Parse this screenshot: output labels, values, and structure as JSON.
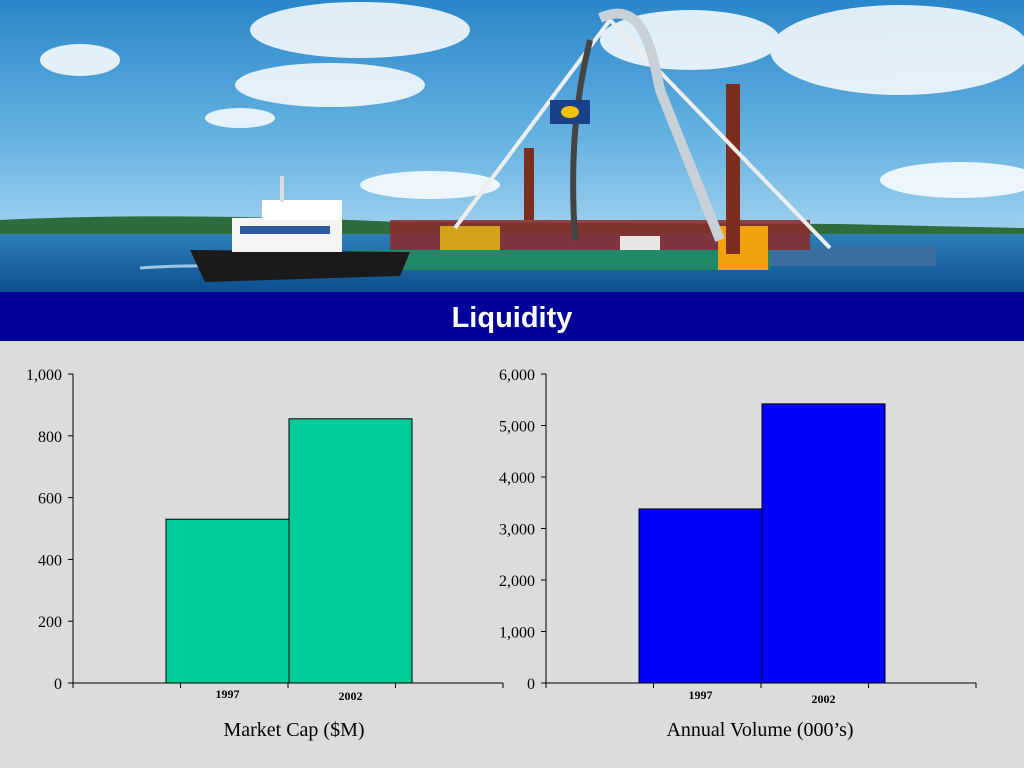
{
  "slide": {
    "title": "Liquidity",
    "title_bar_color": "#000099",
    "background_color": "#dcdcdc",
    "hero_image": "cable-laying-barge-photo"
  },
  "chart_data": [
    {
      "type": "bar",
      "categories": [
        "1997",
        "2002"
      ],
      "series": [
        {
          "values": [
            530,
            855
          ]
        }
      ],
      "xlabel": "Market Cap ($M)",
      "ylabel": "",
      "ylim": [
        0,
        1000
      ],
      "yticks": [
        0,
        200,
        400,
        600,
        800,
        1000
      ],
      "ytick_labels": [
        "0",
        "200",
        "400",
        "600",
        "800",
        "1,000"
      ],
      "bar_color": "#00cc99",
      "grid": false,
      "legend": "none"
    },
    {
      "type": "bar",
      "categories": [
        "1997",
        "2002"
      ],
      "series": [
        {
          "values": [
            3380,
            5420
          ]
        }
      ],
      "xlabel": "Annual Volume (000’s)",
      "ylabel": "",
      "ylim": [
        0,
        6000
      ],
      "yticks": [
        0,
        1000,
        2000,
        3000,
        4000,
        5000,
        6000
      ],
      "ytick_labels": [
        "0",
        "1,000",
        "2,000",
        "3,000",
        "4,000",
        "5,000",
        "6,000"
      ],
      "bar_color": "#0000ff",
      "grid": false,
      "legend": "none"
    }
  ]
}
